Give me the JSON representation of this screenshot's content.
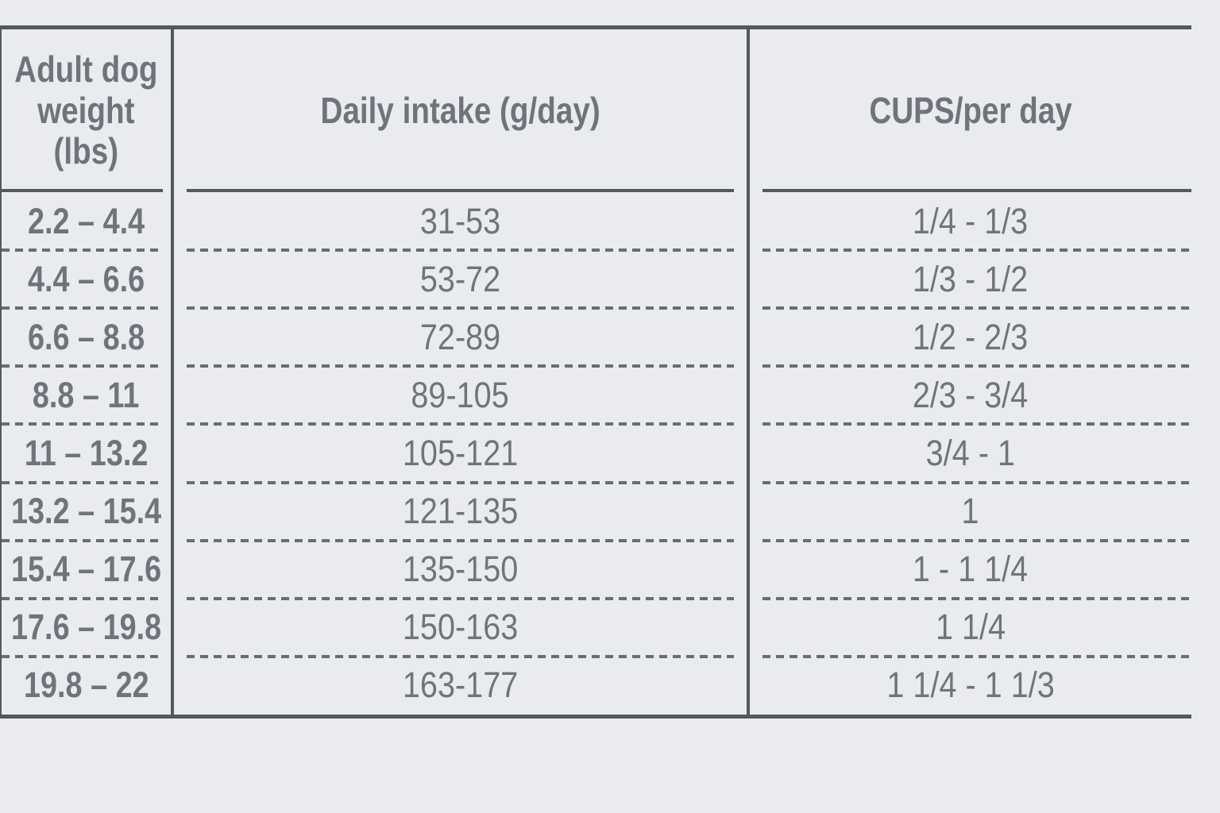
{
  "colors": {
    "bg": "#eaebee",
    "line": "#54585f",
    "dash": "#686c73",
    "text": "#6f747c"
  },
  "header": {
    "col1_lines": [
      "Adult dog",
      "weight",
      "(lbs)"
    ],
    "col2": "Daily intake (g/day)",
    "col3": "CUPS/per day"
  },
  "chart_data": {
    "type": "table",
    "columns": [
      "Adult dog weight (lbs)",
      "Daily intake (g/day)",
      "CUPS/per day"
    ],
    "rows": [
      [
        "2.2 – 4.4",
        "31-53",
        "1/4 - 1/3"
      ],
      [
        "4.4 – 6.6",
        "53-72",
        "1/3 - 1/2"
      ],
      [
        "6.6 – 8.8",
        "72-89",
        "1/2 - 2/3"
      ],
      [
        "8.8 – 11",
        "89-105",
        "2/3 - 3/4"
      ],
      [
        "11 – 13.2",
        "105-121",
        "3/4 - 1"
      ],
      [
        "13.2 – 15.4",
        "121-135",
        "1"
      ],
      [
        "15.4 – 17.6",
        "135-150",
        "1 - 1 1/4"
      ],
      [
        "17.6 – 19.8",
        "150-163",
        "1 1/4"
      ],
      [
        "19.8 – 22",
        "163-177",
        "1 1/4 - 1 1/3"
      ]
    ]
  }
}
